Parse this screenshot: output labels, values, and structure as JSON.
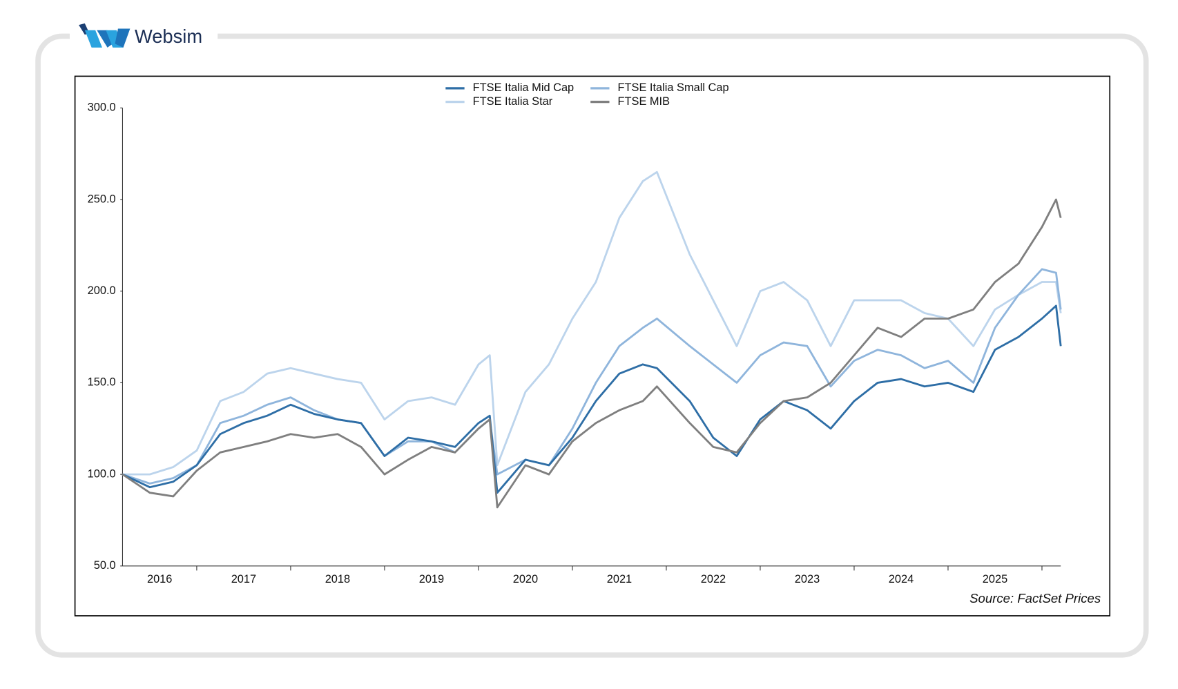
{
  "brand": "Websim",
  "chart_data": {
    "type": "line",
    "source": "Source: FactSet Prices",
    "x": [
      2016.21,
      2016.5,
      2016.75,
      2017.0,
      2017.25,
      2017.5,
      2017.75,
      2018.0,
      2018.25,
      2018.5,
      2018.75,
      2019.0,
      2019.25,
      2019.5,
      2019.75,
      2020.0,
      2020.12,
      2020.2,
      2020.5,
      2020.75,
      2021.0,
      2021.25,
      2021.5,
      2021.75,
      2021.9,
      2022.25,
      2022.5,
      2022.75,
      2023.0,
      2023.25,
      2023.5,
      2023.75,
      2024.0,
      2024.25,
      2024.5,
      2024.75,
      2025.0,
      2025.27,
      2025.5,
      2025.75,
      2026.0,
      2026.15,
      2026.2
    ],
    "series": [
      {
        "name": "FTSE Italia Mid Cap",
        "color": "#2e6ea6",
        "values": [
          100,
          93,
          96,
          105,
          122,
          128,
          132,
          138,
          133,
          130,
          128,
          110,
          120,
          118,
          115,
          128,
          132,
          90,
          108,
          105,
          120,
          140,
          155,
          160,
          158,
          140,
          120,
          110,
          130,
          140,
          135,
          125,
          140,
          150,
          152,
          148,
          150,
          145,
          168,
          175,
          185,
          192,
          170
        ]
      },
      {
        "name": "FTSE Italia Small Cap",
        "color": "#8fb5dc",
        "values": [
          100,
          95,
          98,
          105,
          128,
          132,
          138,
          142,
          135,
          130,
          128,
          110,
          118,
          118,
          112,
          125,
          130,
          100,
          108,
          105,
          125,
          150,
          170,
          180,
          185,
          170,
          160,
          150,
          165,
          172,
          170,
          148,
          162,
          168,
          165,
          158,
          162,
          150,
          180,
          198,
          212,
          210,
          190
        ]
      },
      {
        "name": "FTSE Italia Star",
        "color": "#bcd4ec",
        "values": [
          100,
          100,
          104,
          113,
          140,
          145,
          155,
          158,
          155,
          152,
          150,
          130,
          140,
          142,
          138,
          160,
          165,
          105,
          145,
          160,
          185,
          205,
          240,
          260,
          265,
          220,
          195,
          170,
          200,
          205,
          195,
          170,
          195,
          195,
          195,
          188,
          185,
          170,
          190,
          198,
          205,
          205,
          188
        ]
      },
      {
        "name": "FTSE MIB",
        "color": "#7f7f7f",
        "values": [
          100,
          90,
          88,
          102,
          112,
          115,
          118,
          122,
          120,
          122,
          115,
          100,
          108,
          115,
          112,
          125,
          130,
          82,
          105,
          100,
          118,
          128,
          135,
          140,
          148,
          128,
          115,
          112,
          128,
          140,
          142,
          150,
          165,
          180,
          175,
          185,
          185,
          190,
          205,
          215,
          235,
          250,
          240
        ]
      }
    ],
    "xlim": [
      2016.21,
      2026.2
    ],
    "xticks": [
      2017,
      2018,
      2019,
      2020,
      2021,
      2022,
      2023,
      2024,
      2025,
      2026
    ],
    "year_labels": [
      "2016",
      "2017",
      "2018",
      "2019",
      "2020",
      "2021",
      "2022",
      "2023",
      "2024",
      "2025"
    ],
    "ylim": [
      50,
      300
    ],
    "yticks": [
      {
        "value": 50,
        "label": "50.0"
      },
      {
        "value": 100,
        "label": "100.0"
      },
      {
        "value": 150,
        "label": "150.0"
      },
      {
        "value": 200,
        "label": "200.0"
      },
      {
        "value": 250,
        "label": "250.0"
      },
      {
        "value": 300,
        "label": "300.0"
      }
    ]
  }
}
